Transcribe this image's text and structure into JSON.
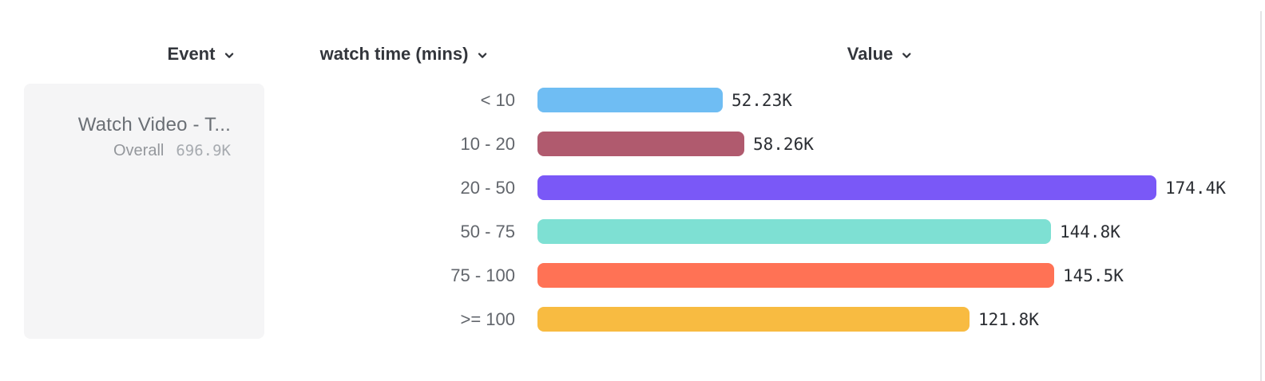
{
  "header": {
    "event_label": "Event",
    "breakdown_label": "watch time (mins)",
    "value_label": "Value"
  },
  "event_panel": {
    "event_name": "Watch Video - T...",
    "overall_label": "Overall",
    "overall_value": "696.9K"
  },
  "chart_data": {
    "type": "bar",
    "orientation": "horizontal",
    "title": "",
    "xlabel": "Value",
    "ylabel": "watch time (mins)",
    "categories": [
      "< 10",
      "10 - 20",
      "20 - 50",
      "50 - 75",
      "75 - 100",
      ">= 100"
    ],
    "values": [
      52230,
      58260,
      174400,
      144800,
      145500,
      121800
    ],
    "value_labels": [
      "52.23K",
      "58.26K",
      "174.4K",
      "144.8K",
      "145.5K",
      "121.8K"
    ],
    "bar_colors": [
      "#6FBDF3",
      "#B05A6E",
      "#7A58F7",
      "#7EE0D3",
      "#FF7255",
      "#F8BB41"
    ],
    "xlim": [
      0,
      174400
    ],
    "grid": false,
    "legend": false
  }
}
